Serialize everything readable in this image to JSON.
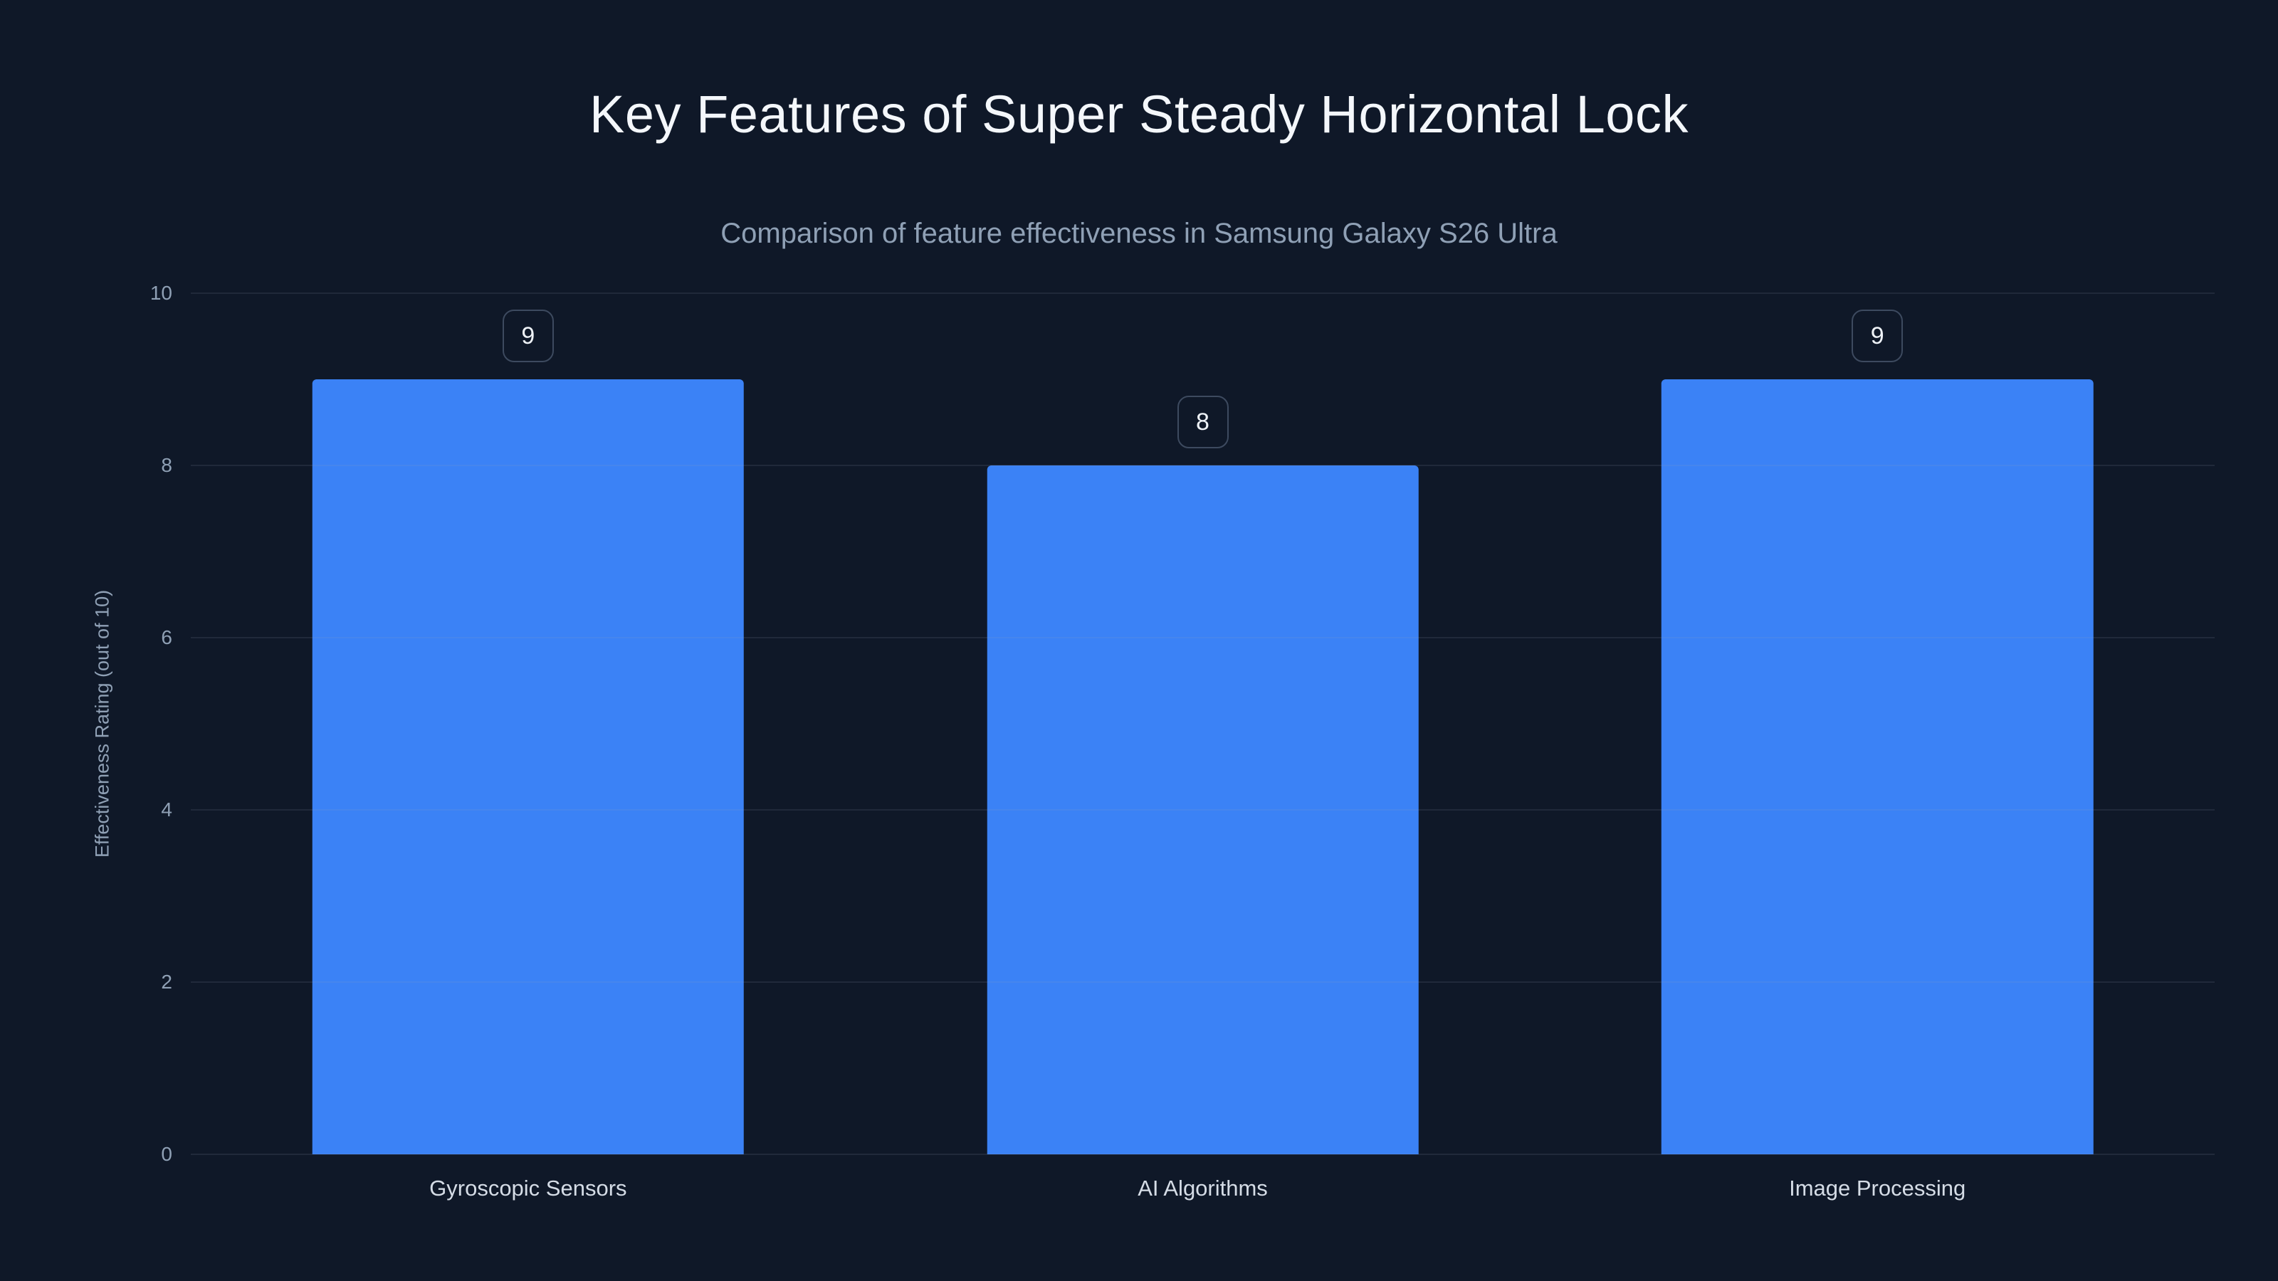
{
  "page": {
    "title": "Key Features of Super Steady Horizontal Lock",
    "subtitle": "Comparison of feature effectiveness in Samsung Galaxy S26 Ultra"
  },
  "chart_data": {
    "type": "bar",
    "title": "Key Features of Super Steady Horizontal Lock",
    "subtitle": "Comparison of feature effectiveness in Samsung Galaxy S26 Ultra",
    "categories": [
      "Gyroscopic Sensors",
      "AI Algorithms",
      "Image Processing"
    ],
    "values": [
      9,
      8,
      9
    ],
    "value_labels": [
      "9",
      "8",
      "9"
    ],
    "xlabel": "",
    "ylabel": "Effectiveness Rating (out of 10)",
    "ylim": [
      0,
      10
    ],
    "yticks": [
      0,
      2,
      4,
      6,
      8,
      10
    ],
    "grid": true,
    "legend": false,
    "bar_color": "#3b82f6",
    "background_color": "#0f1828",
    "title_color": "#f4f7fb",
    "subtitle_color": "#8fa0b5",
    "axis_text_color": "#8fa0b5",
    "category_text_color": "#d5dce6"
  }
}
